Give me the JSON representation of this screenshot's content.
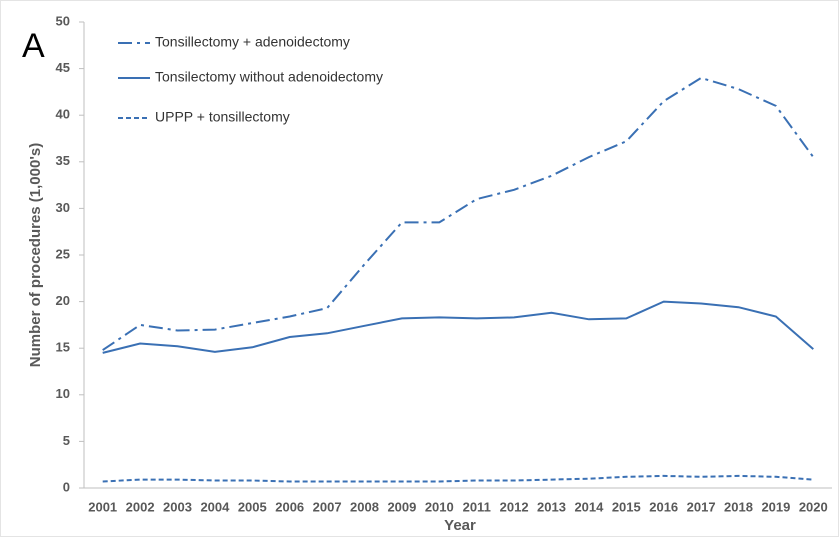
{
  "chart_data": {
    "type": "line",
    "panel_label": "A",
    "x_label": "Year",
    "y_label": "Number of procedures (1,000's)",
    "categories": [
      "2001",
      "2002",
      "2003",
      "2004",
      "2005",
      "2006",
      "2007",
      "2008",
      "2009",
      "2010",
      "2011",
      "2012",
      "2013",
      "2014",
      "2015",
      "2016",
      "2017",
      "2018",
      "2019",
      "2020"
    ],
    "series": [
      {
        "name": "Tonsillectomy + adenoidectomy",
        "color": "#3a70b4",
        "dash": "dashdot",
        "values": [
          14.8,
          17.5,
          16.9,
          17.0,
          17.7,
          18.4,
          19.3,
          24.0,
          28.5,
          28.5,
          31.0,
          32.0,
          33.5,
          35.5,
          37.2,
          41.5,
          44.0,
          42.8,
          41.0,
          35.5
        ]
      },
      {
        "name": "Tonsilectomy without adenoidectomy",
        "color": "#3a70b4",
        "dash": "solid",
        "values": [
          14.5,
          15.5,
          15.2,
          14.6,
          15.1,
          16.2,
          16.6,
          17.4,
          18.2,
          18.3,
          18.2,
          18.3,
          18.8,
          18.1,
          18.2,
          20.0,
          19.8,
          19.4,
          18.4,
          14.9
        ]
      },
      {
        "name": "UPPP + tonsillectomy",
        "color": "#3a70b4",
        "dash": "dash",
        "values": [
          0.7,
          0.9,
          0.9,
          0.8,
          0.8,
          0.7,
          0.7,
          0.7,
          0.7,
          0.7,
          0.8,
          0.8,
          0.9,
          1.0,
          1.2,
          1.3,
          1.2,
          1.3,
          1.2,
          0.9
        ]
      }
    ],
    "ylim": [
      0,
      50
    ],
    "yticks": [
      0,
      5,
      10,
      15,
      20,
      25,
      30,
      35,
      40,
      45,
      50
    ],
    "grid": false,
    "legend": "upper left"
  }
}
